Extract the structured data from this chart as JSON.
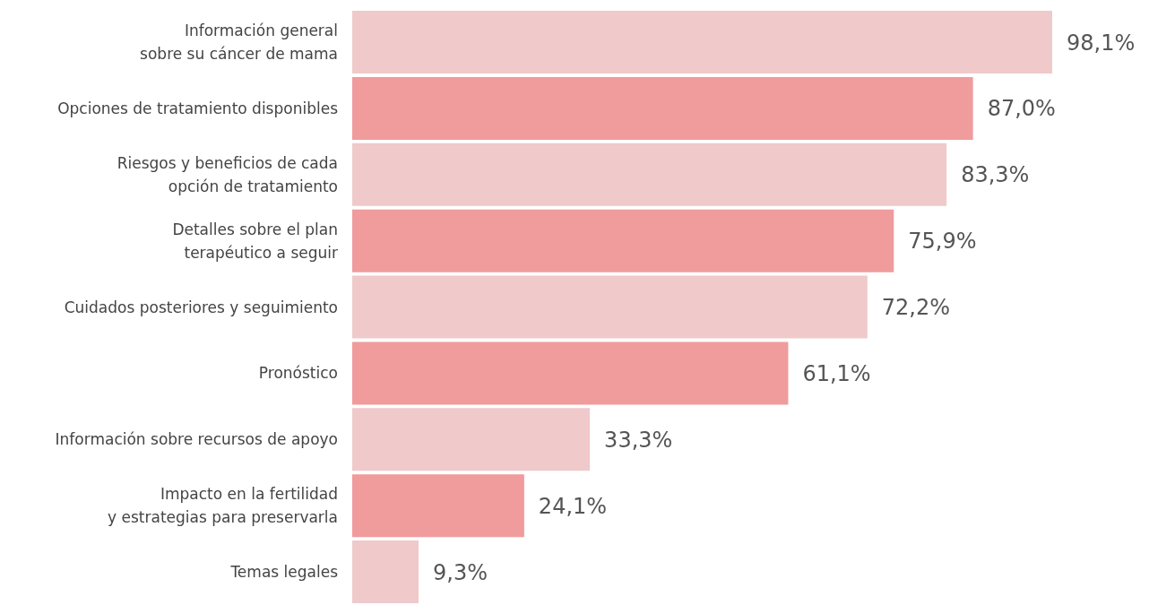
{
  "chart_data": {
    "type": "bar",
    "orientation": "horizontal",
    "categories": [
      "Información general\nsobre su cáncer de mama",
      "Opciones de tratamiento disponibles",
      "Riesgos y beneficios de cada\nopción de tratamiento",
      "Detalles sobre el plan\nterapéutico a seguir",
      "Cuidados posteriores y seguimiento",
      "Pronóstico",
      "Información sobre recursos de apoyo",
      "Impacto en la fertilidad\ny estrategias para preservarla",
      "Temas legales"
    ],
    "values": [
      98.1,
      87.0,
      83.3,
      75.9,
      72.2,
      61.1,
      33.3,
      24.1,
      9.3
    ],
    "value_labels": [
      "98,1%",
      "87,0%",
      "83,3%",
      "75,9%",
      "72,2%",
      "61,1%",
      "33,3%",
      "24,1%",
      "9,3%"
    ],
    "colors": [
      "#f0c9ca",
      "#f09b9c",
      "#f0c9ca",
      "#f09b9c",
      "#f0c9ca",
      "#f09b9c",
      "#f0c9ca",
      "#f09b9c",
      "#f0c9ca"
    ]
  }
}
